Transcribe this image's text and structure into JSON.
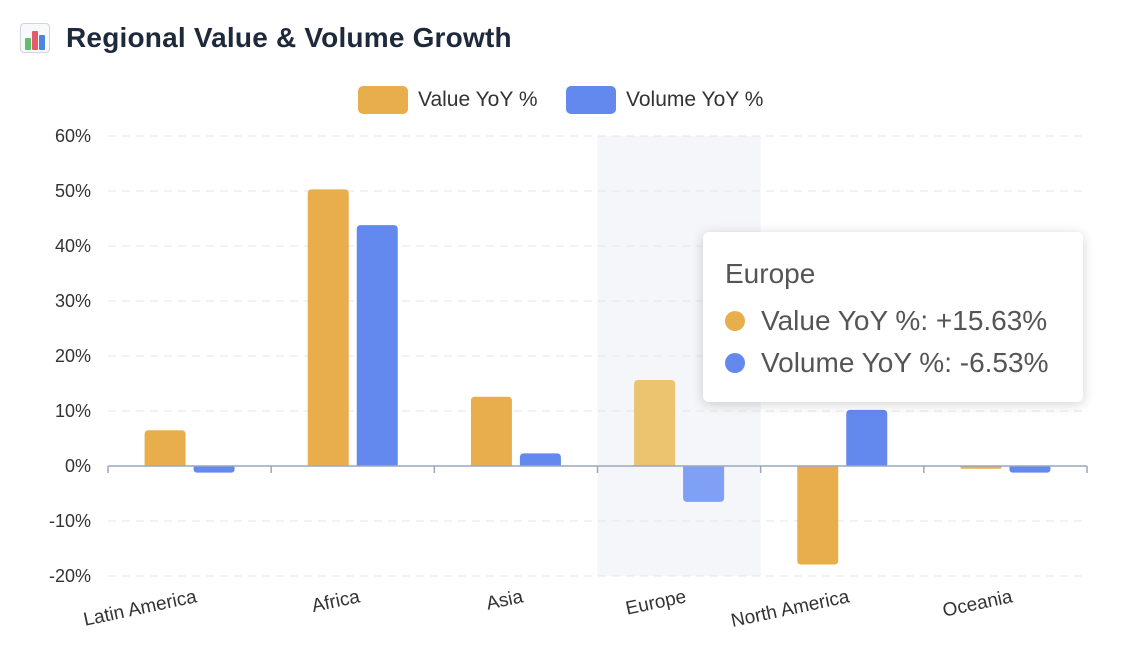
{
  "header": {
    "title": "Regional Value & Volume Growth",
    "icon": "bar-chart-emoji-icon"
  },
  "colors": {
    "value": "#e8ae4c",
    "volume": "#6388ee",
    "value_highlight": "#ecc46f",
    "volume_highlight": "#7fa0f5",
    "highlight_band": "#f4f6fa"
  },
  "chart_data": {
    "type": "bar",
    "categories": [
      "Latin America",
      "Africa",
      "Asia",
      "Europe",
      "North America",
      "Oceania"
    ],
    "series": [
      {
        "name": "Value YoY %",
        "values": [
          6.5,
          50.3,
          12.6,
          15.63,
          -17.9,
          -0.5
        ]
      },
      {
        "name": "Volume YoY %",
        "values": [
          -1.2,
          43.8,
          2.3,
          -6.53,
          10.2,
          -1.2
        ]
      }
    ],
    "ylim": [
      -20,
      60
    ],
    "yticks": [
      "60%",
      "50%",
      "40%",
      "30%",
      "20%",
      "10%",
      "0%",
      "-10%",
      "-20%"
    ],
    "ytick_values": [
      60,
      50,
      40,
      30,
      20,
      10,
      0,
      -10,
      -20
    ],
    "grid": true,
    "legend_position": "top-center",
    "highlighted_category": "Europe"
  },
  "tooltip": {
    "title": "Europe",
    "rows": [
      {
        "label": "Value YoY %: +15.63%"
      },
      {
        "label": "Volume YoY %: -6.53%"
      }
    ]
  }
}
